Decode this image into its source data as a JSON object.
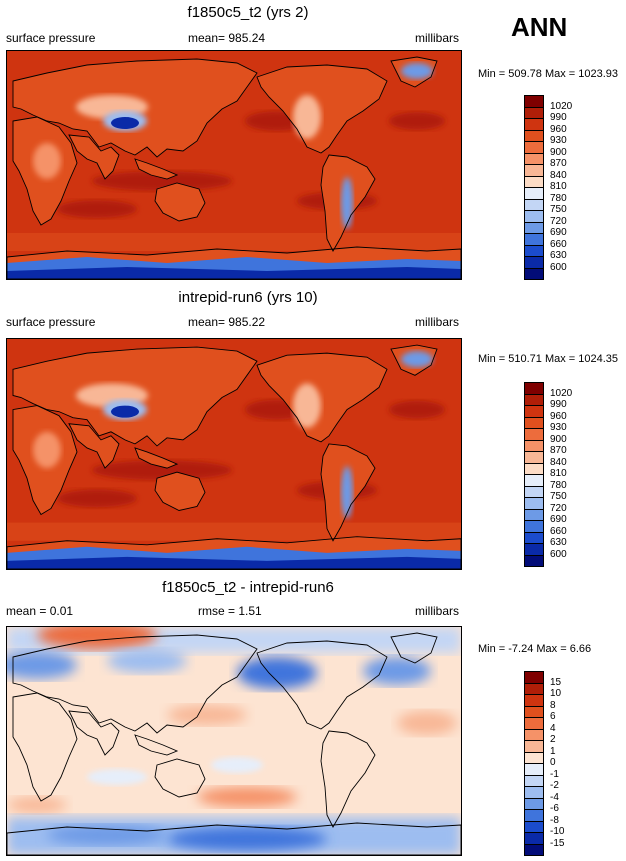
{
  "season": "ANN",
  "panels": [
    {
      "title": "f1850c5_t2 (yrs 2)",
      "left_label": "surface pressure",
      "center_label": "mean= 985.24",
      "right_label": "millibars",
      "minmax": "Min = 509.78 Max = 1023.93",
      "scheme": "abs"
    },
    {
      "title": "intrepid-run6 (yrs 10)",
      "left_label": "surface pressure",
      "center_label": "mean= 985.22",
      "right_label": "millibars",
      "minmax": "Min = 510.71 Max = 1024.35",
      "scheme": "abs"
    },
    {
      "title": "f1850c5_t2 - intrepid-run6",
      "left_label": "mean =   0.01",
      "center_label": "rmse =   1.51",
      "right_label": "millibars",
      "minmax": "Min =  -7.24 Max =   6.66",
      "scheme": "diff"
    }
  ],
  "legends": {
    "abs": {
      "labels": [
        "1020",
        "990",
        "960",
        "930",
        "900",
        "870",
        "840",
        "810",
        "780",
        "750",
        "720",
        "690",
        "660",
        "630",
        "600"
      ],
      "colors": [
        "#7f0000",
        "#b01e08",
        "#cf3410",
        "#e0501e",
        "#ed6c3c",
        "#f59268",
        "#f8b796",
        "#fcdcc6",
        "#e6eefa",
        "#c3d6f5",
        "#9dbdf0",
        "#6d9ae6",
        "#3f74dc",
        "#1b4ccd",
        "#0a2aa8",
        "#020c78"
      ]
    },
    "diff": {
      "labels": [
        "15",
        "10",
        "8",
        "6",
        "4",
        "2",
        "1",
        "0",
        "-1",
        "-2",
        "-4",
        "-6",
        "-8",
        "-10",
        "-15"
      ],
      "colors": [
        "#7f0000",
        "#b01e08",
        "#cf3410",
        "#e0501e",
        "#ed6c3c",
        "#f59268",
        "#f8b796",
        "#fde4d2",
        "#e6eefa",
        "#c3d6f5",
        "#9dbdf0",
        "#6d9ae6",
        "#3f74dc",
        "#1b4ccd",
        "#0a2aa8",
        "#020c78"
      ]
    }
  }
}
